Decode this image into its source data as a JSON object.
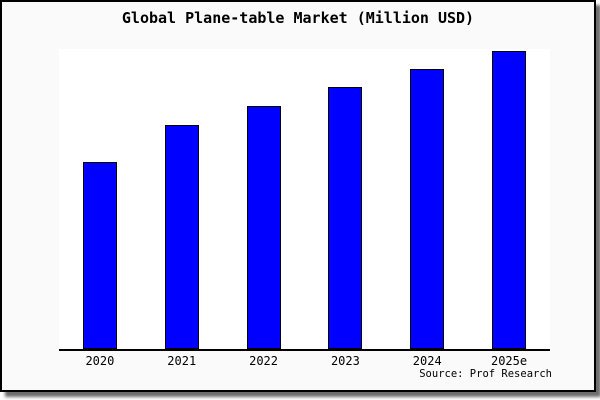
{
  "window": {
    "figure_background": "#fafafa",
    "frame_border_color": "#000000",
    "shadow_color": "#6e6e6e"
  },
  "chart_data": {
    "type": "bar",
    "title": "Global Plane-table Market (Million USD)",
    "categories": [
      "2020",
      "2021",
      "2022",
      "2023",
      "2024",
      "2025e"
    ],
    "values": [
      62.3,
      74.7,
      81.0,
      87.3,
      93.3,
      99.3
    ],
    "unit": "relative bar height, % of plot area height (no y-axis or value labels shown in chart)",
    "xlabel": "",
    "ylabel": "",
    "ylim": [
      0,
      100
    ],
    "grid": false,
    "legend": false,
    "y_axis_visible": false,
    "bar_color": "#0000ff",
    "bar_edge_color": "#000000",
    "plot_background": "#ffffff",
    "source_note": "Source: Prof Research"
  }
}
